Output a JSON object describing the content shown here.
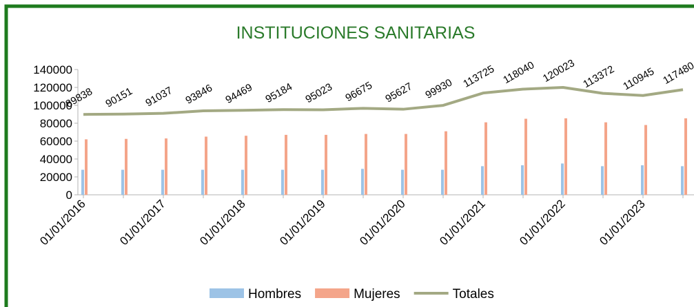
{
  "chart_data": {
    "type": "bar_line",
    "title": "INSTITUCIONES SANITARIAS",
    "categories": [
      "01/01/2016",
      null,
      "01/01/2017",
      null,
      "01/01/2018",
      null,
      "01/01/2019",
      null,
      "01/01/2020",
      null,
      "01/01/2021",
      null,
      "01/01/2022",
      null,
      "01/01/2023",
      null
    ],
    "series": [
      {
        "name": "Hombres",
        "type": "bar",
        "color": "#9dc3e6",
        "values": [
          28000,
          28000,
          28000,
          28000,
          28000,
          28000,
          28000,
          29000,
          28000,
          28000,
          32000,
          33000,
          35000,
          32000,
          33000,
          32000
        ]
      },
      {
        "name": "Mujeres",
        "type": "bar",
        "color": "#f4a58a",
        "values": [
          62000,
          62500,
          63000,
          65000,
          66000,
          67000,
          67000,
          68000,
          68000,
          71000,
          81000,
          85000,
          85500,
          81000,
          78000,
          85500
        ]
      },
      {
        "name": "Totales",
        "type": "line",
        "color": "#a3a983",
        "values": [
          89838,
          90151,
          91037,
          93846,
          94469,
          95184,
          95023,
          96675,
          95627,
          99930,
          113725,
          118040,
          120023,
          113372,
          110945,
          117480
        ]
      }
    ],
    "ylim": [
      0,
      140000
    ],
    "yticks": [
      0,
      20000,
      40000,
      60000,
      80000,
      100000,
      120000,
      140000
    ],
    "grid": false,
    "legend": "bottom",
    "title_color": "#2a7a2a"
  }
}
